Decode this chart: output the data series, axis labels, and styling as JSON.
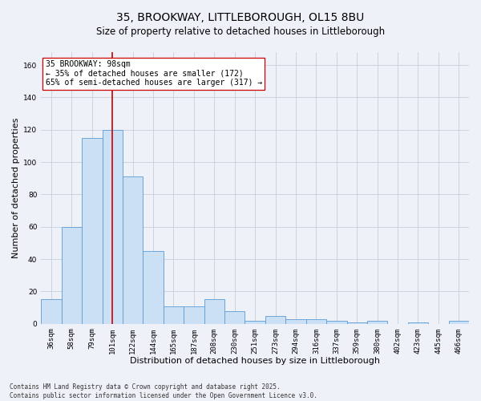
{
  "title": "35, BROOKWAY, LITTLEBOROUGH, OL15 8BU",
  "subtitle": "Size of property relative to detached houses in Littleborough",
  "xlabel": "Distribution of detached houses by size in Littleborough",
  "ylabel": "Number of detached properties",
  "categories": [
    "36sqm",
    "58sqm",
    "79sqm",
    "101sqm",
    "122sqm",
    "144sqm",
    "165sqm",
    "187sqm",
    "208sqm",
    "230sqm",
    "251sqm",
    "273sqm",
    "294sqm",
    "316sqm",
    "337sqm",
    "359sqm",
    "380sqm",
    "402sqm",
    "423sqm",
    "445sqm",
    "466sqm"
  ],
  "values": [
    15,
    60,
    115,
    120,
    91,
    45,
    11,
    11,
    15,
    8,
    2,
    5,
    3,
    3,
    2,
    1,
    2,
    0,
    1,
    0,
    2
  ],
  "bar_color": "#cce0f5",
  "bar_edge_color": "#5b9bd5",
  "vline_x": 3.0,
  "vline_color": "#cc0000",
  "annotation_text": "35 BROOKWAY: 98sqm\n← 35% of detached houses are smaller (172)\n65% of semi-detached houses are larger (317) →",
  "annotation_box_color": "#ffffff",
  "annotation_box_edge_color": "#cc0000",
  "ylim": [
    0,
    168
  ],
  "yticks": [
    0,
    20,
    40,
    60,
    80,
    100,
    120,
    140,
    160
  ],
  "footer": "Contains HM Land Registry data © Crown copyright and database right 2025.\nContains public sector information licensed under the Open Government Licence v3.0.",
  "background_color": "#eef2f8",
  "title_fontsize": 10,
  "axis_label_fontsize": 8,
  "tick_fontsize": 6.5,
  "annotation_fontsize": 7,
  "footer_fontsize": 5.5
}
